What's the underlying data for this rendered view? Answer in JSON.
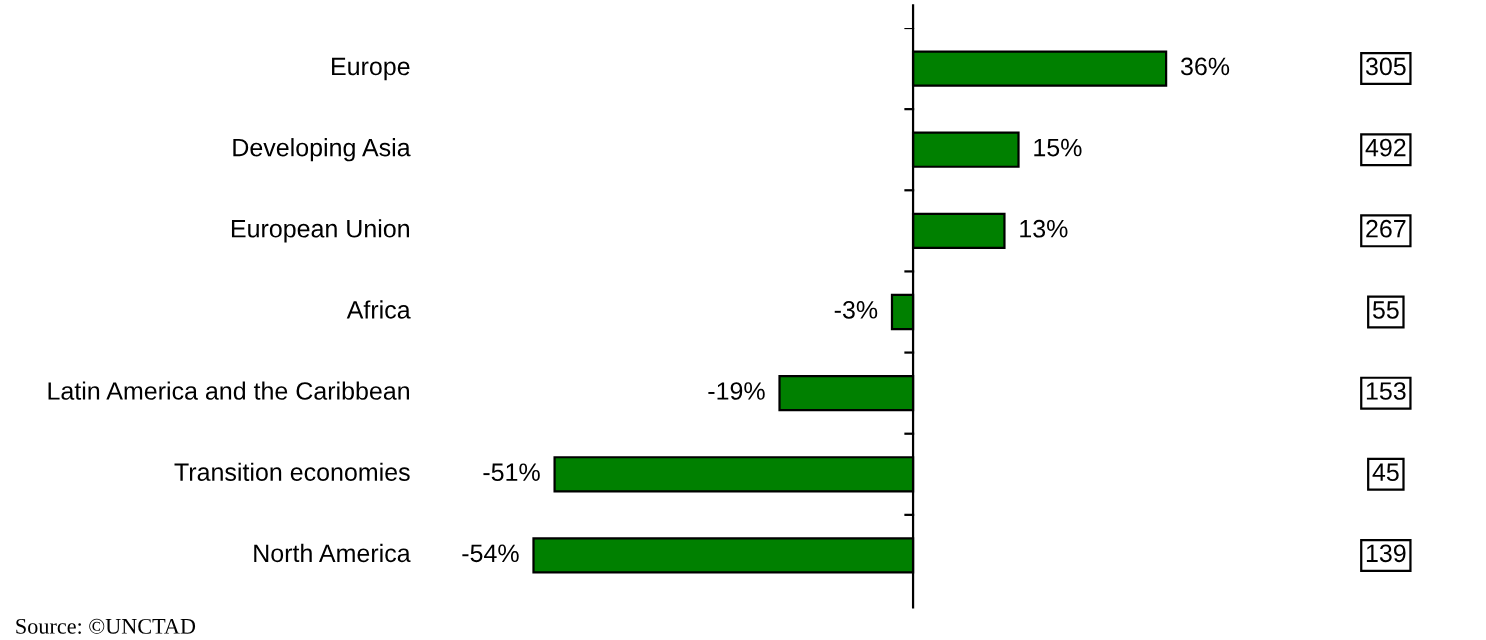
{
  "chart_data": {
    "type": "bar",
    "orientation": "horizontal",
    "categories": [
      "Europe",
      "Developing Asia",
      "European Union",
      "Africa",
      "Latin America and the Caribbean",
      "Transition economies",
      "North America"
    ],
    "values": [
      36,
      15,
      13,
      -3,
      -19,
      -51,
      -54
    ],
    "value_labels": [
      "36%",
      "15%",
      "13%",
      "-3%",
      "-19%",
      "-51%",
      "-54%"
    ],
    "color": "#008000",
    "annotations": [
      "305",
      "492",
      "267",
      "55",
      "153",
      "45",
      "139",
      "Source: ©UNCTAD"
    ],
    "grid": false,
    "legend": false
  }
}
